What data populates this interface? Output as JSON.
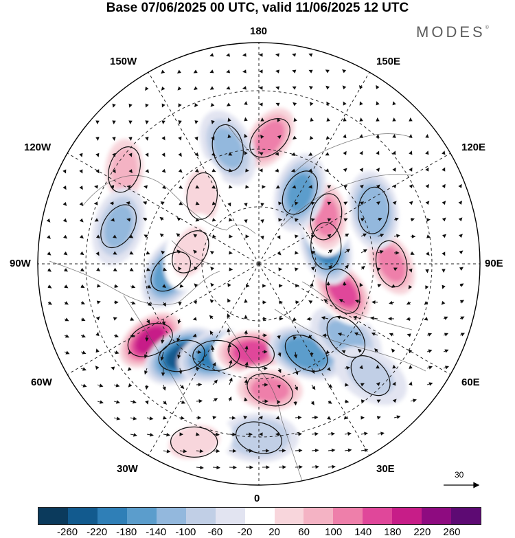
{
  "title": "Base 07/06/2025 00 UTC, valid 11/06/2025 12 UTC",
  "brand": "MODES",
  "brand_mark": "©",
  "longitude_labels": {
    "top": "180",
    "bottom": "0",
    "left": "90W",
    "right": "90E",
    "upper_left_1": "150W",
    "upper_left_2": "120W",
    "upper_right_1": "150E",
    "upper_right_2": "120E",
    "lower_left_1": "60W",
    "lower_left_2": "30W",
    "lower_right_1": "60E",
    "lower_right_2": "30E"
  },
  "vector_reference": {
    "value": "30"
  },
  "colorbar": {
    "colors": [
      "#0b3a5c",
      "#125a8e",
      "#2f7fb7",
      "#5b9dcc",
      "#93b8dd",
      "#c1cfe6",
      "#e2e4f1",
      "#ffffff",
      "#f8d6dc",
      "#f4b3c4",
      "#ee7faa",
      "#e0479a",
      "#c71d88",
      "#8e0b80",
      "#5d0a73"
    ],
    "ticks": [
      "-260",
      "-220",
      "-180",
      "-140",
      "-100",
      "-60",
      "-20",
      "20",
      "60",
      "100",
      "140",
      "180",
      "220",
      "260"
    ]
  },
  "anomaly_centers": [
    {
      "lon": -55,
      "lat": 48,
      "value": 230
    },
    {
      "lon": -40,
      "lat": 52,
      "value": -230
    },
    {
      "lon": -25,
      "lat": 58,
      "value": -180
    },
    {
      "lon": -5,
      "lat": 62,
      "value": 160
    },
    {
      "lon": 5,
      "lat": 50,
      "value": 130
    },
    {
      "lon": 28,
      "lat": 58,
      "value": -160
    },
    {
      "lon": 50,
      "lat": 54,
      "value": -100
    },
    {
      "lon": 72,
      "lat": 62,
      "value": 190
    },
    {
      "lon": 90,
      "lat": 48,
      "value": 150
    },
    {
      "lon": 105,
      "lat": 68,
      "value": -190
    },
    {
      "lon": 115,
      "lat": 50,
      "value": -120
    },
    {
      "lon": 125,
      "lat": 64,
      "value": 150
    },
    {
      "lon": 150,
      "lat": 64,
      "value": -130
    },
    {
      "lon": 175,
      "lat": 50,
      "value": 140
    },
    {
      "lon": -165,
      "lat": 52,
      "value": -110
    },
    {
      "lon": -125,
      "lat": 38,
      "value": 80
    },
    {
      "lon": -105,
      "lat": 44,
      "value": -90
    },
    {
      "lon": -85,
      "lat": 62,
      "value": -160
    },
    {
      "lon": -140,
      "lat": 62,
      "value": 60
    },
    {
      "lon": -100,
      "lat": 68,
      "value": 70
    },
    {
      "lon": 45,
      "lat": 40,
      "value": -70
    },
    {
      "lon": 0,
      "lat": 35,
      "value": -80
    },
    {
      "lon": -20,
      "lat": 30,
      "value": 60
    }
  ]
}
